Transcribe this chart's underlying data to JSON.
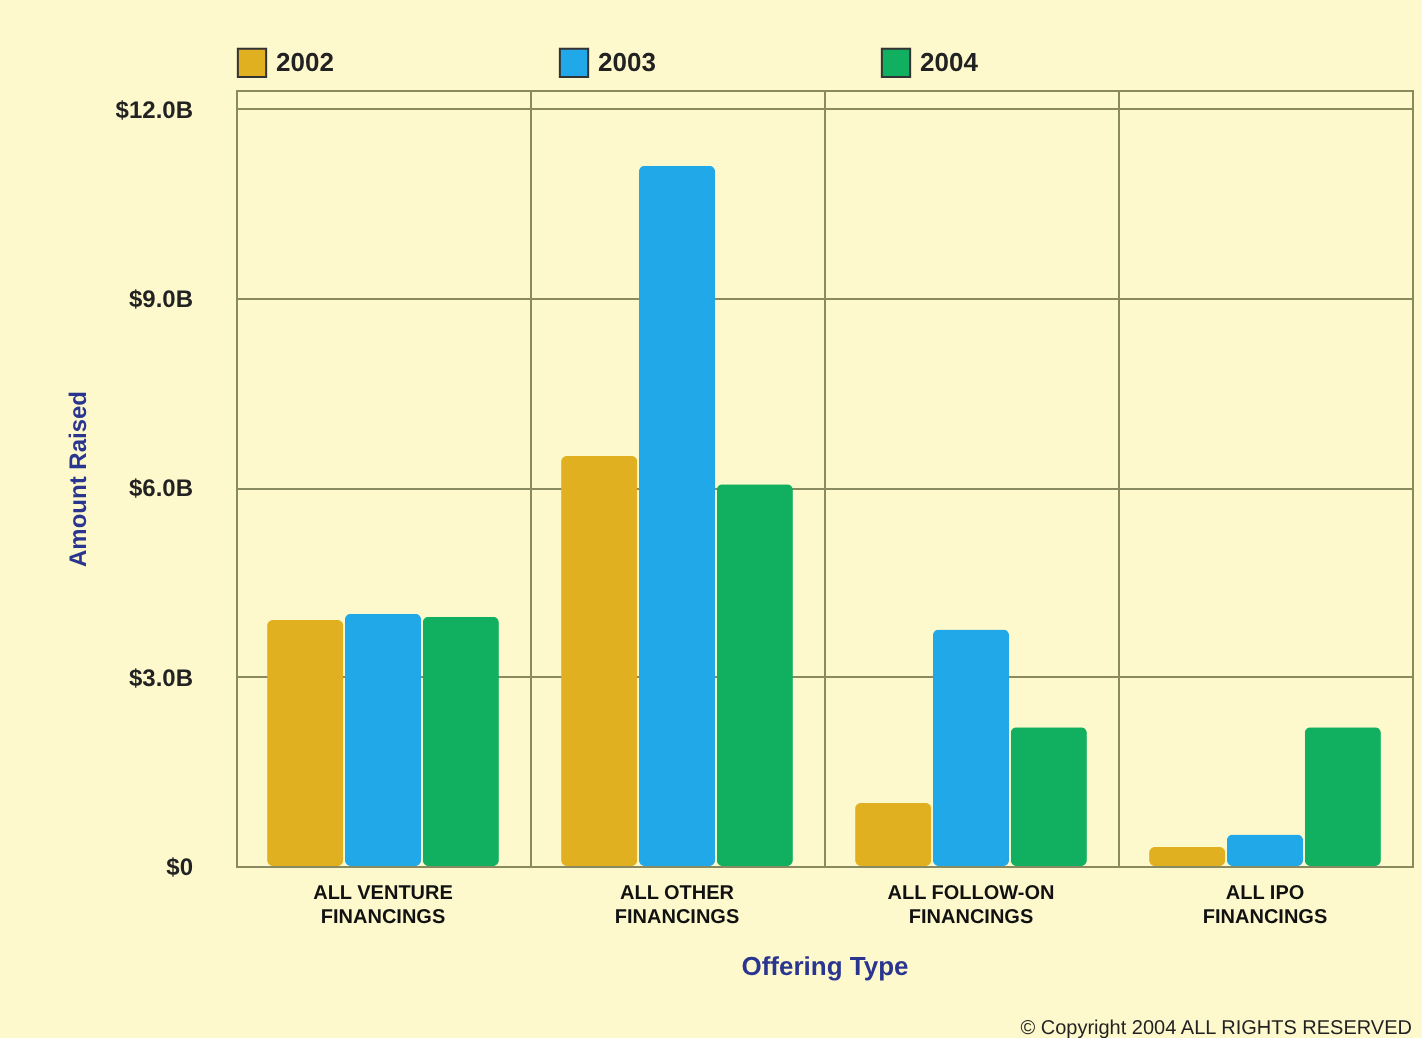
{
  "chart_data": {
    "type": "bar",
    "categories": [
      "ALL VENTURE FINANCINGS",
      "ALL OTHER FINANCINGS",
      "ALL FOLLOW-ON FINANCINGS",
      "ALL IPO FINANCINGS"
    ],
    "series": [
      {
        "name": "2002",
        "color": "#e0b020",
        "values": [
          3.9,
          6.5,
          1.0,
          0.3
        ]
      },
      {
        "name": "2003",
        "color": "#20a8e8",
        "values": [
          4.0,
          11.1,
          3.75,
          0.5
        ]
      },
      {
        "name": "2004",
        "color": "#10b060",
        "values": [
          3.95,
          6.05,
          2.2,
          2.2
        ]
      }
    ],
    "xlabel": "Offering Type",
    "ylabel": "Amount Raised",
    "ylim": [
      0,
      12.3
    ],
    "yticks": [
      {
        "value": 0,
        "label": "$0"
      },
      {
        "value": 3,
        "label": "$3.0B"
      },
      {
        "value": 6,
        "label": "$6.0B"
      },
      {
        "value": 9,
        "label": "$9.0B"
      },
      {
        "value": 12,
        "label": "$12.0B"
      }
    ],
    "grid": true,
    "legend": "top",
    "annotations": [
      "© Copyright 2004 ALL RIGHTS RESERVED"
    ]
  }
}
